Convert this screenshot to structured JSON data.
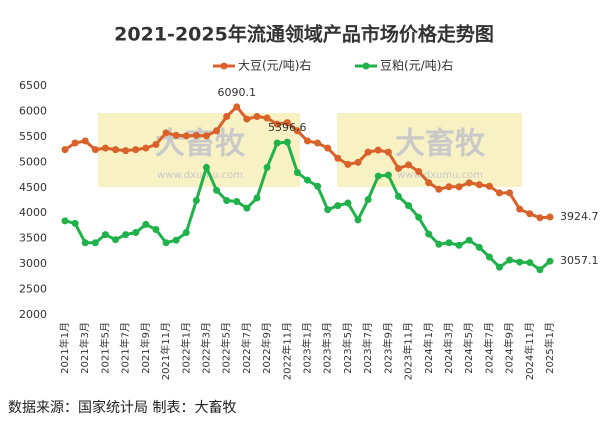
{
  "chart_data": {
    "type": "line",
    "title": "2021-2025年流通领域产品市场价格走势图",
    "source": "数据来源：国家统计局 制表：大畜牧",
    "watermark": "大畜牧",
    "watermark_url": "www.dxumu.com",
    "categories": [
      "2021年1月",
      null,
      "2021年3月",
      null,
      "2021年5月",
      null,
      "2021年7月",
      null,
      "2021年9月",
      null,
      "2021年11月",
      null,
      "2022年1月",
      null,
      "2022年3月",
      null,
      "2022年5月",
      null,
      "2022年7月",
      null,
      "2022年9月",
      null,
      "2022年11月",
      null,
      "2023年1月",
      null,
      "2023年3月",
      null,
      "2023年5月",
      null,
      "2023年7月",
      null,
      "2023年9月",
      null,
      "2023年11月",
      null,
      "2024年1月",
      null,
      "2024年3月",
      null,
      "2024年5月",
      null,
      "2024年7月",
      null,
      "2024年9月",
      null,
      "2024年11月",
      null,
      "2025年1月"
    ],
    "series": [
      {
        "name": "大豆(元/吨)右",
        "color": "#d9622b",
        "values": [
          5250,
          5380,
          5420,
          5250,
          5280,
          5250,
          5230,
          5250,
          5280,
          5350,
          5580,
          5530,
          5520,
          5530,
          5520,
          5620,
          5900,
          6090.1,
          5850,
          5900,
          5870,
          5750,
          5780,
          5620,
          5420,
          5380,
          5280,
          5080,
          4960,
          5000,
          5200,
          5240,
          5200,
          4880,
          4950,
          4820,
          4600,
          4470,
          4520,
          4520,
          4600,
          4560,
          4530,
          4400,
          4400,
          4080,
          3990,
          3910,
          3924.7
        ],
        "value_labels": [
          null,
          null,
          null,
          null,
          null,
          null,
          null,
          null,
          null,
          null,
          null,
          null,
          null,
          null,
          null,
          null,
          null,
          "6090.1",
          null,
          null,
          null,
          null,
          null,
          null,
          null,
          null,
          null,
          null,
          null,
          null,
          null,
          null,
          null,
          null,
          null,
          null,
          null,
          null,
          null,
          null,
          null,
          null,
          null,
          null,
          null,
          null,
          null,
          null,
          "3924.7"
        ]
      },
      {
        "name": "豆粕(元/吨)右",
        "color": "#1fb24a",
        "values": [
          3850,
          3800,
          3420,
          3420,
          3580,
          3480,
          3580,
          3620,
          3780,
          3680,
          3420,
          3470,
          3620,
          4250,
          4900,
          4450,
          4250,
          4230,
          4100,
          4300,
          4900,
          5380,
          5396.6,
          4800,
          4650,
          4530,
          4070,
          4150,
          4200,
          3870,
          4270,
          4730,
          4750,
          4330,
          4150,
          3920,
          3590,
          3390,
          3420,
          3370,
          3470,
          3330,
          3140,
          2940,
          3080,
          3040,
          3030,
          2890,
          3057.1
        ],
        "value_labels": [
          null,
          null,
          null,
          null,
          null,
          null,
          null,
          null,
          null,
          null,
          null,
          null,
          null,
          null,
          null,
          null,
          null,
          null,
          null,
          null,
          null,
          null,
          "5396.6",
          null,
          null,
          null,
          null,
          null,
          null,
          null,
          null,
          null,
          null,
          null,
          null,
          null,
          null,
          null,
          null,
          null,
          null,
          null,
          null,
          null,
          null,
          null,
          null,
          null,
          "3057.1"
        ]
      }
    ],
    "ylim": [
      2000,
      6500
    ],
    "yticks": [
      2000,
      2500,
      3000,
      3500,
      4000,
      4500,
      5000,
      5500,
      6000,
      6500
    ],
    "grid": false,
    "legend": "top"
  }
}
